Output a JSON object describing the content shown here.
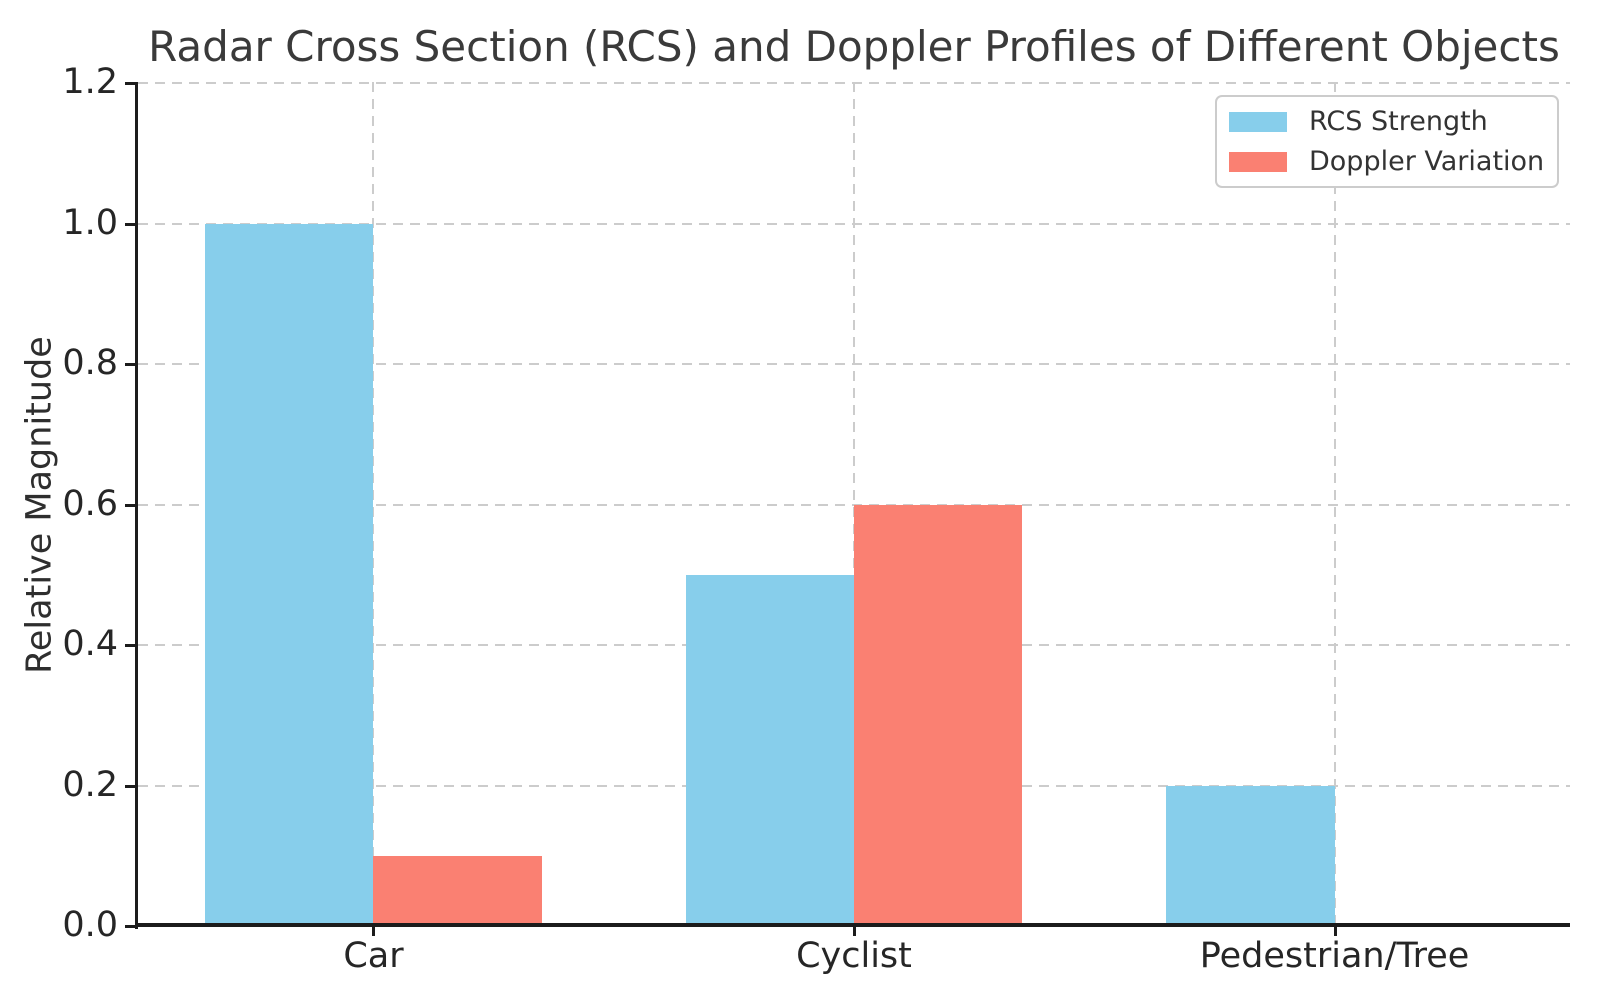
{
  "chart_data": {
    "type": "bar",
    "title": "Radar Cross Section (RCS) and Doppler Profiles of Different Objects",
    "ylabel": "Relative Magnitude",
    "xlabel": "",
    "categories": [
      "Car",
      "Cyclist",
      "Pedestrian/Tree"
    ],
    "series": [
      {
        "name": "RCS Strength",
        "color": "#87CEEB",
        "values": [
          1.0,
          0.5,
          0.2
        ]
      },
      {
        "name": "Doppler Variation",
        "color": "#FA8072",
        "values": [
          0.1,
          0.6,
          0.0
        ]
      }
    ],
    "ylim": [
      0.0,
      1.2
    ],
    "yticks": [
      {
        "value": 0.0,
        "label": "0.0"
      },
      {
        "value": 0.2,
        "label": "0.2"
      },
      {
        "value": 0.4,
        "label": "0.4"
      },
      {
        "value": 0.6,
        "label": "0.6"
      },
      {
        "value": 0.8,
        "label": "0.8"
      },
      {
        "value": 1.0,
        "label": "1.0"
      },
      {
        "value": 1.2,
        "label": "1.2"
      }
    ],
    "bar_width_fraction": 0.35,
    "grid": {
      "show": true,
      "style": "dashed",
      "color": "#cccccc"
    },
    "legend": {
      "position": "upper right"
    }
  }
}
